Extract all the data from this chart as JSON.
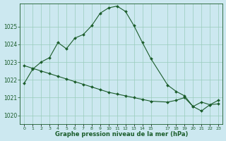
{
  "title": "Graphe pression niveau de la mer (hPa)",
  "bg_color": "#cce8f0",
  "grid_color": "#99ccbb",
  "line_color": "#1a5c2a",
  "marker_color": "#1a5c2a",
  "ylim": [
    1019.5,
    1026.3
  ],
  "yticks": [
    1020,
    1021,
    1022,
    1023,
    1024,
    1025
  ],
  "xlim": [
    -0.5,
    23.5
  ],
  "xticks": [
    0,
    1,
    2,
    3,
    4,
    5,
    6,
    7,
    8,
    9,
    10,
    11,
    12,
    13,
    14,
    15,
    17,
    18,
    19,
    20,
    21,
    22,
    23
  ],
  "line1_x": [
    0,
    1,
    2,
    3,
    4,
    5,
    6,
    7,
    8,
    9,
    10,
    11,
    12,
    13,
    14,
    15,
    17,
    18,
    19,
    20,
    21,
    22,
    23
  ],
  "line1_y": [
    1021.8,
    1022.6,
    1023.0,
    1023.25,
    1024.1,
    1023.75,
    1024.35,
    1024.55,
    1025.05,
    1025.75,
    1026.05,
    1026.15,
    1025.85,
    1025.05,
    1024.1,
    1023.2,
    1021.7,
    1021.35,
    1021.1,
    1020.5,
    1020.25,
    1020.6,
    1020.65
  ],
  "line2_x": [
    0,
    1,
    2,
    3,
    4,
    5,
    6,
    7,
    8,
    9,
    10,
    11,
    12,
    13,
    14,
    15,
    17,
    18,
    19,
    20,
    21,
    22,
    23
  ],
  "line2_y": [
    1022.8,
    1022.65,
    1022.5,
    1022.35,
    1022.2,
    1022.05,
    1021.9,
    1021.75,
    1021.6,
    1021.45,
    1021.3,
    1021.2,
    1021.1,
    1021.0,
    1020.9,
    1020.8,
    1020.75,
    1020.85,
    1021.0,
    1020.5,
    1020.75,
    1020.6,
    1020.85
  ]
}
